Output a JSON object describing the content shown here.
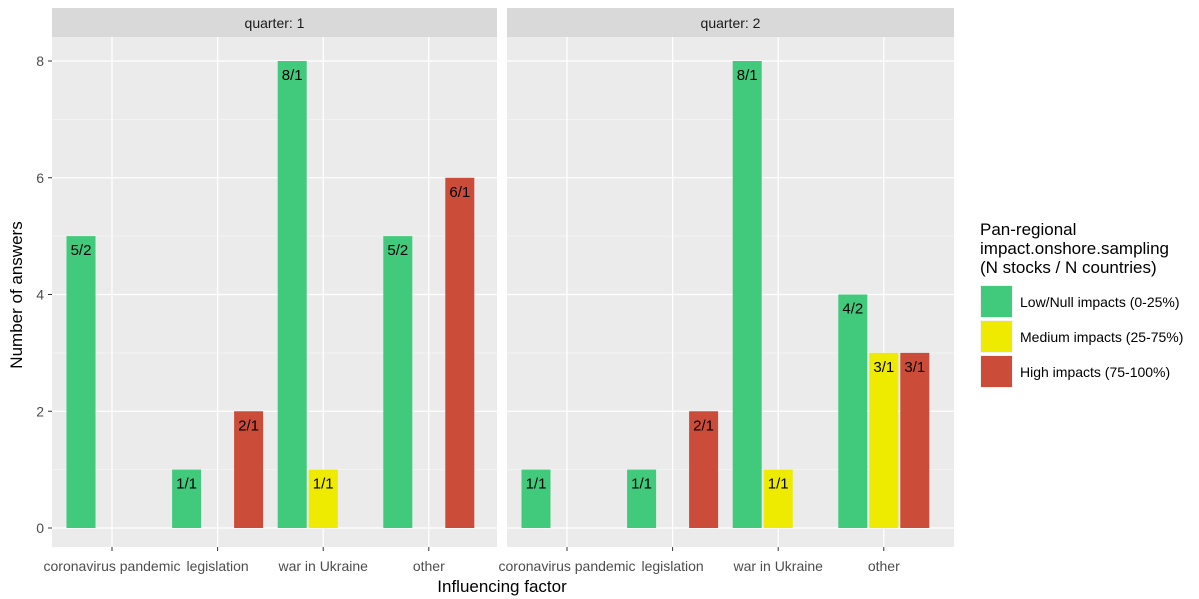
{
  "chart_data": {
    "type": "bar",
    "facet_label_prefix": "quarter: ",
    "facets": [
      {
        "label": "quarter: 1",
        "categories": [
          "coronavirus pandemic",
          "legislation",
          "war in Ukraine",
          "other"
        ],
        "series": [
          {
            "name": "Low/Null impacts (0-25%)",
            "values": [
              5,
              1,
              8,
              5
            ],
            "labels": [
              "5/2",
              "1/1",
              "8/1",
              "5/2"
            ]
          },
          {
            "name": "Medium impacts (25-75%)",
            "values": [
              null,
              null,
              1,
              null
            ],
            "labels": [
              "",
              "",
              "1/1",
              ""
            ]
          },
          {
            "name": "High impacts (75-100%)",
            "values": [
              null,
              2,
              null,
              6
            ],
            "labels": [
              "",
              "2/1",
              "",
              "6/1"
            ]
          }
        ]
      },
      {
        "label": "quarter: 2",
        "categories": [
          "coronavirus pandemic",
          "legislation",
          "war in Ukraine",
          "other"
        ],
        "series": [
          {
            "name": "Low/Null impacts (0-25%)",
            "values": [
              1,
              1,
              8,
              4
            ],
            "labels": [
              "1/1",
              "1/1",
              "8/1",
              "4/2"
            ]
          },
          {
            "name": "Medium impacts (25-75%)",
            "values": [
              null,
              null,
              1,
              3
            ],
            "labels": [
              "",
              "",
              "1/1",
              "3/1"
            ]
          },
          {
            "name": "High impacts (75-100%)",
            "values": [
              null,
              2,
              null,
              3
            ],
            "labels": [
              "",
              "2/1",
              "",
              "3/1"
            ]
          }
        ]
      }
    ],
    "xlabel": "Influencing factor",
    "ylabel": "Number of answers",
    "ylim": [
      0,
      8.6
    ],
    "yticks": [
      0,
      2,
      4,
      6,
      8
    ],
    "grid": true,
    "legend": {
      "title_lines": [
        "Pan-regional",
        "impact.onshore.sampling",
        "(N stocks / N countries)"
      ],
      "placement": "right",
      "entries": [
        {
          "name": "Low/Null impacts (0-25%)",
          "color": "#41c97c"
        },
        {
          "name": "Medium impacts (25-75%)",
          "color": "#eeea00"
        },
        {
          "name": "High impacts (75-100%)",
          "color": "#cc4c3a"
        }
      ]
    },
    "colors": {
      "panel_bg": "#ebebeb",
      "strip_bg": "#d9d9d9",
      "grid_major": "#ffffff"
    }
  }
}
